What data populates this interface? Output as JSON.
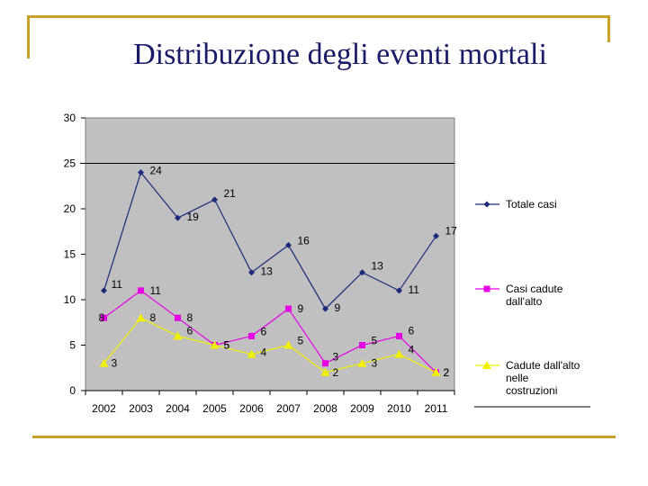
{
  "slide": {
    "title": "Distribuzione degli eventi mortali",
    "accent_color": "#c9a227",
    "title_color": "#1a1a66"
  },
  "chart_data": {
    "type": "line",
    "categories": [
      "2002",
      "2003",
      "2004",
      "2005",
      "2006",
      "2007",
      "2008",
      "2009",
      "2010",
      "2011"
    ],
    "ylim": [
      0,
      30
    ],
    "yticks": [
      0,
      5,
      10,
      15,
      20,
      25,
      30
    ],
    "grid": false,
    "plot_background": "#c0c0c0",
    "legend_position": "right",
    "series": [
      {
        "name": "Totale casi",
        "values": [
          11,
          24,
          19,
          21,
          13,
          16,
          9,
          13,
          11,
          17
        ],
        "color": "#1c2a7a",
        "marker": "diamond"
      },
      {
        "name": "Casi cadute dall'alto",
        "values": [
          8,
          11,
          8,
          5,
          6,
          9,
          3,
          5,
          6,
          2
        ],
        "color": "#e600e6",
        "marker": "square"
      },
      {
        "name": "Cadute dall'alto nelle costruzioni",
        "values": [
          3,
          8,
          6,
          5,
          4,
          5,
          2,
          3,
          4,
          2
        ],
        "color": "#f0f000",
        "marker": "triangle"
      }
    ]
  }
}
